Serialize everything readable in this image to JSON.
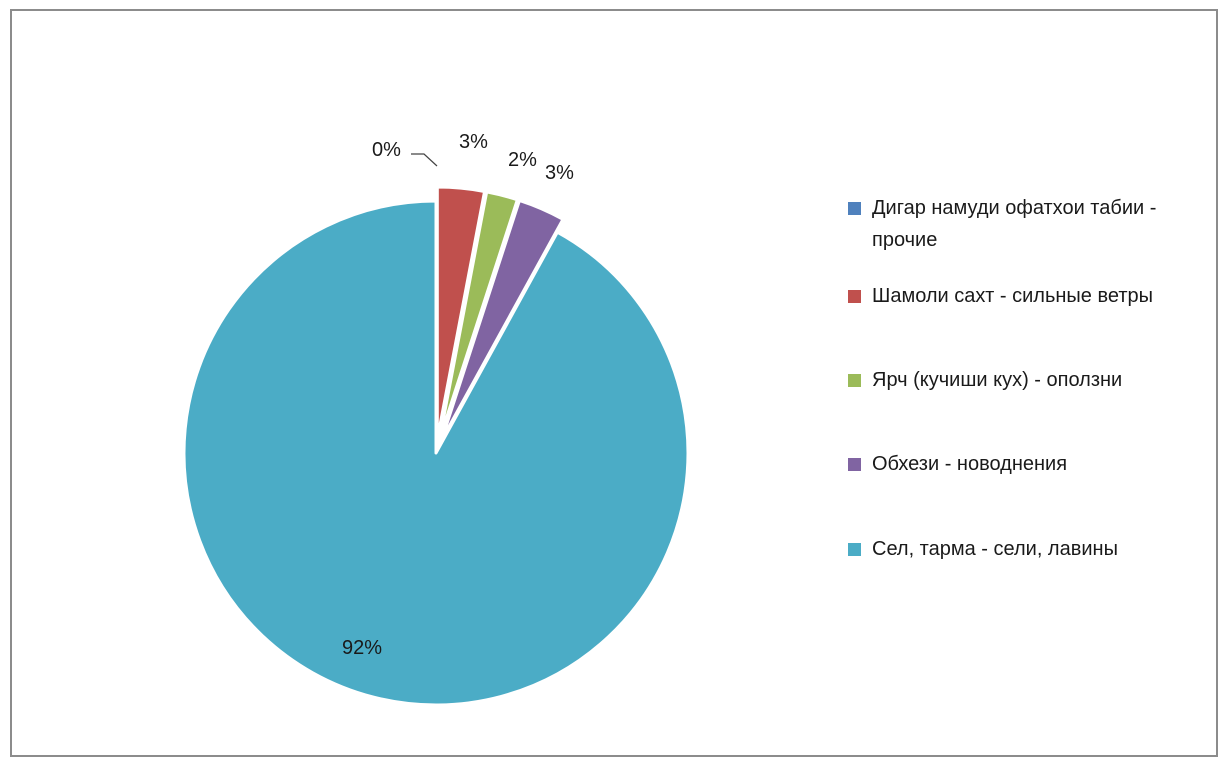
{
  "chart_data": {
    "type": "pie",
    "title": "",
    "slices": [
      {
        "label": "Дигар намуди офатхои табии - прочие",
        "value": 0,
        "display": "0%",
        "color": "#4f81bd"
      },
      {
        "label": "Шамоли сахт - сильные ветры",
        "value": 3,
        "display": "3%",
        "color": "#c0504d"
      },
      {
        "label": "Ярч (кучиши кух) - оползни",
        "value": 2,
        "display": "2%",
        "color": "#9bbb59"
      },
      {
        "label": "Обхези - новоднения",
        "value": 3,
        "display": "3%",
        "color": "#8064a2"
      },
      {
        "label": "Сел, тарма - сели, лавины",
        "value": 92,
        "display": "92%",
        "color": "#4bacc6"
      }
    ],
    "legend_position": "right"
  }
}
